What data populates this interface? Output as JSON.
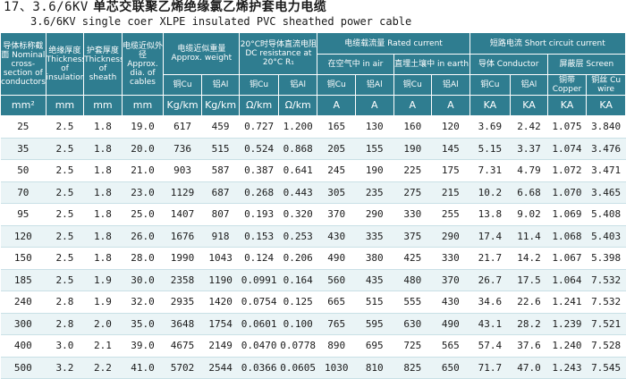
{
  "title": {
    "number": "17、3.6/6KV",
    "text": "单芯交联聚乙烯绝缘氯乙烯护套电力电缆"
  },
  "subtitle": "3.6/6KV  single coer XLPE insulated PVC sheathed power cable",
  "header": {
    "col1": "导体标称截面 Nominal cross-section of conductors",
    "col2": "绝缘厚度 Thickness of insulation",
    "col3": "护套厚度 Thickness of sheath",
    "col4": "电缆近似外径 Approx. dia. of cables",
    "weight_group": "电缆近似重量 Approx. weight",
    "weight_cu": "铜Cu",
    "weight_al": "铝Al",
    "resist_group": "20°C时导体直流电阻 DC resistance at 20°C R₁",
    "resist_cu": "铜Cu",
    "resist_al": "铝Al",
    "current_group": "电缆载流量 Rated current",
    "air_group": "在空气中 in air",
    "earth_group": "直埋土壤中 in earth",
    "air_cu": "铜Cu",
    "air_al": "铝Al",
    "earth_cu": "铜Cu",
    "earth_al": "铝Al",
    "short_group": "短路电流 Short circuit current",
    "short_cond": "导体 Conductor",
    "short_screen": "屏蔽层 Screen",
    "short_cond_cu": "铜Cu",
    "short_cond_al": "铝Al",
    "short_screen_cu": "铜带 Copper",
    "short_screen_wire": "铜丝 Cu wire"
  },
  "units": [
    "mm²",
    "mm",
    "mm",
    "mm",
    "Kg/km",
    "Kg/km",
    "Ω/km",
    "Ω/km",
    "A",
    "A",
    "A",
    "A",
    "KA",
    "KA",
    "KA",
    "KA"
  ],
  "rows": [
    [
      "25",
      "2.5",
      "1.8",
      "19.0",
      "617",
      "459",
      "0.727",
      "1.200",
      "165",
      "130",
      "160",
      "120",
      "3.69",
      "2.42",
      "1.075",
      "3.840"
    ],
    [
      "35",
      "2.5",
      "1.8",
      "20.0",
      "736",
      "515",
      "0.524",
      "0.868",
      "205",
      "155",
      "190",
      "145",
      "5.15",
      "3.37",
      "1.074",
      "3.476"
    ],
    [
      "50",
      "2.5",
      "1.8",
      "21.0",
      "903",
      "587",
      "0.387",
      "0.641",
      "245",
      "190",
      "225",
      "175",
      "7.31",
      "4.79",
      "1.072",
      "3.471"
    ],
    [
      "70",
      "2.5",
      "1.8",
      "23.0",
      "1129",
      "687",
      "0.268",
      "0.443",
      "305",
      "235",
      "275",
      "215",
      "10.2",
      "6.68",
      "1.070",
      "3.465"
    ],
    [
      "95",
      "2.5",
      "1.8",
      "25.0",
      "1407",
      "807",
      "0.193",
      "0.320",
      "370",
      "290",
      "330",
      "255",
      "13.8",
      "9.02",
      "1.069",
      "5.408"
    ],
    [
      "120",
      "2.5",
      "1.8",
      "26.0",
      "1676",
      "918",
      "0.153",
      "0.253",
      "430",
      "335",
      "375",
      "290",
      "17.4",
      "11.4",
      "1.068",
      "5.403"
    ],
    [
      "150",
      "2.5",
      "1.8",
      "28.0",
      "1990",
      "1043",
      "0.124",
      "0.206",
      "490",
      "380",
      "425",
      "330",
      "21.7",
      "14.2",
      "1.067",
      "5.398"
    ],
    [
      "185",
      "2.5",
      "1.9",
      "30.0",
      "2358",
      "1190",
      "0.0991",
      "0.164",
      "560",
      "435",
      "480",
      "370",
      "26.7",
      "17.5",
      "1.064",
      "7.532"
    ],
    [
      "240",
      "2.8",
      "1.9",
      "32.0",
      "2935",
      "1420",
      "0.0754",
      "0.125",
      "665",
      "515",
      "555",
      "430",
      "34.6",
      "22.6",
      "1.241",
      "7.532"
    ],
    [
      "300",
      "2.8",
      "2.0",
      "35.0",
      "3648",
      "1754",
      "0.0601",
      "0.100",
      "765",
      "595",
      "630",
      "490",
      "43.1",
      "28.2",
      "1.239",
      "7.521"
    ],
    [
      "400",
      "3.0",
      "2.1",
      "39.0",
      "4675",
      "2149",
      "0.0470",
      "0.0778",
      "890",
      "695",
      "725",
      "565",
      "57.4",
      "37.6",
      "1.240",
      "7.528"
    ],
    [
      "500",
      "3.2",
      "2.2",
      "41.0",
      "5702",
      "2544",
      "0.0366",
      "0.0605",
      "1030",
      "810",
      "825",
      "650",
      "71.7",
      "47.0",
      "1.243",
      "7.545"
    ]
  ]
}
